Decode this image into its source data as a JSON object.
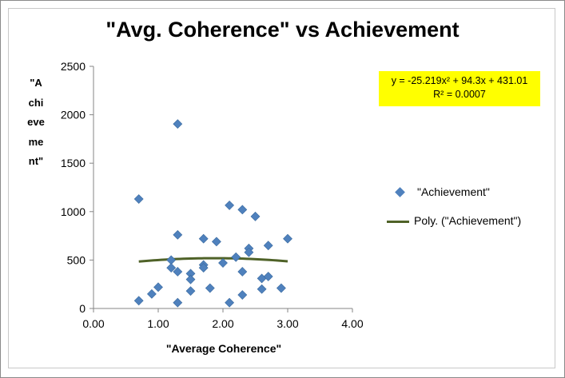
{
  "chart_data": {
    "type": "scatter",
    "title": "\"Avg. Coherence\" vs Achievement",
    "xlabel": "\"Average Coherence\"",
    "ylabel": "\"Achievement\"",
    "xlim": [
      0,
      4
    ],
    "ylim": [
      0,
      2500
    ],
    "x_ticks": [
      "0.00",
      "1.00",
      "2.00",
      "3.00",
      "4.00"
    ],
    "y_ticks": [
      "0",
      "500",
      "1000",
      "1500",
      "2000",
      "2500"
    ],
    "grid": false,
    "legend_position": "right",
    "series": [
      {
        "name": "\"Achievement\"",
        "color": "#4f81bd",
        "marker": "diamond",
        "points": [
          {
            "x": 0.7,
            "y": 1130
          },
          {
            "x": 0.7,
            "y": 80
          },
          {
            "x": 0.9,
            "y": 150
          },
          {
            "x": 1.0,
            "y": 220
          },
          {
            "x": 1.2,
            "y": 500
          },
          {
            "x": 1.2,
            "y": 420
          },
          {
            "x": 1.3,
            "y": 1905
          },
          {
            "x": 1.3,
            "y": 760
          },
          {
            "x": 1.3,
            "y": 380
          },
          {
            "x": 1.3,
            "y": 60
          },
          {
            "x": 1.5,
            "y": 360
          },
          {
            "x": 1.5,
            "y": 300
          },
          {
            "x": 1.5,
            "y": 180
          },
          {
            "x": 1.7,
            "y": 720
          },
          {
            "x": 1.7,
            "y": 450
          },
          {
            "x": 1.7,
            "y": 420
          },
          {
            "x": 1.8,
            "y": 210
          },
          {
            "x": 1.9,
            "y": 690
          },
          {
            "x": 2.0,
            "y": 470
          },
          {
            "x": 2.1,
            "y": 1065
          },
          {
            "x": 2.1,
            "y": 60
          },
          {
            "x": 2.2,
            "y": 530
          },
          {
            "x": 2.3,
            "y": 1020
          },
          {
            "x": 2.3,
            "y": 380
          },
          {
            "x": 2.3,
            "y": 140
          },
          {
            "x": 2.4,
            "y": 620
          },
          {
            "x": 2.4,
            "y": 580
          },
          {
            "x": 2.5,
            "y": 950
          },
          {
            "x": 2.6,
            "y": 310
          },
          {
            "x": 2.6,
            "y": 200
          },
          {
            "x": 2.7,
            "y": 650
          },
          {
            "x": 2.7,
            "y": 330
          },
          {
            "x": 2.9,
            "y": 210
          },
          {
            "x": 3.0,
            "y": 720
          }
        ]
      }
    ],
    "trendline": {
      "name": "Poly. (\"Achievement\")",
      "type": "polynomial",
      "color": "#4f6228",
      "coefficients": {
        "a": -25.219,
        "b": 94.3,
        "c": 431.01
      },
      "x_range": [
        0.7,
        3.0
      ],
      "equation_lines": [
        "y = -25.219x² + 94.3x + 431.01",
        "R² = 0.0007"
      ],
      "equation_box_color": "#ffff00"
    }
  }
}
